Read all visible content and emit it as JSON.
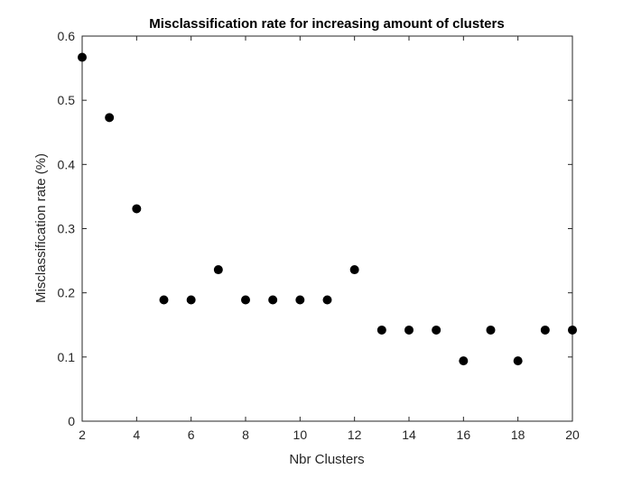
{
  "chart_data": {
    "type": "scatter",
    "title": "Misclassification rate for increasing amount of clusters",
    "xlabel": "Nbr Clusters",
    "ylabel": "Misclassification rate (%)",
    "xlim": [
      2,
      20
    ],
    "ylim": [
      0,
      0.6
    ],
    "xticks": [
      "2",
      "4",
      "6",
      "8",
      "10",
      "12",
      "14",
      "16",
      "18",
      "20"
    ],
    "yticks": [
      "0",
      "0.1",
      "0.2",
      "0.3",
      "0.4",
      "0.5",
      "0.6"
    ],
    "grid": false,
    "marker_color": "#000000",
    "series": [
      {
        "x": [
          2,
          3,
          4,
          5,
          6,
          7,
          8,
          9,
          10,
          11,
          12,
          13,
          14,
          15,
          16,
          17,
          18,
          19,
          20
        ],
        "y": [
          0.567,
          0.473,
          0.331,
          0.189,
          0.189,
          0.236,
          0.189,
          0.189,
          0.189,
          0.189,
          0.236,
          0.142,
          0.142,
          0.142,
          0.094,
          0.142,
          0.094,
          0.142,
          0.142
        ]
      }
    ]
  }
}
